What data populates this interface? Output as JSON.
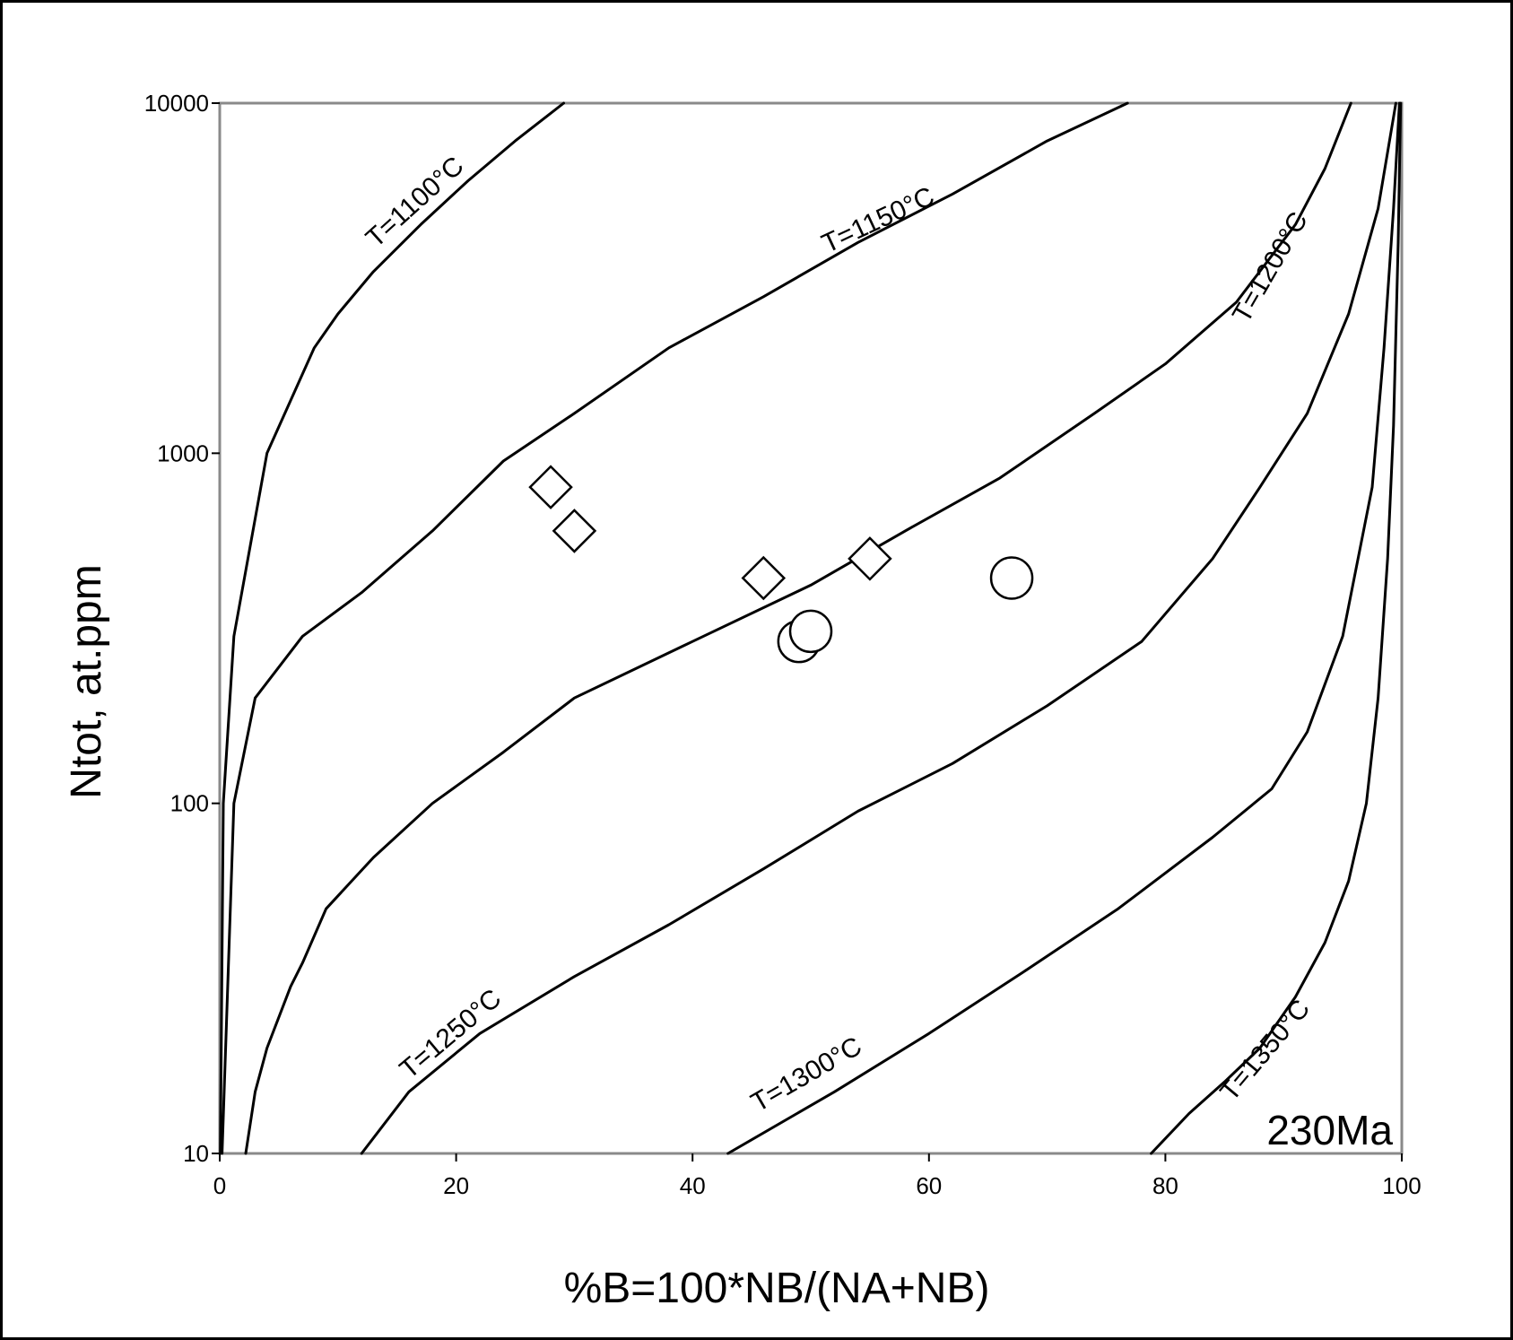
{
  "chart_data": {
    "type": "line",
    "xlabel": "%B=100*NB/(NA+NB)",
    "ylabel": "Ntot, at.ppm",
    "xlim": [
      0,
      100
    ],
    "ylim": [
      10,
      10000
    ],
    "yscale": "log",
    "x_ticks": [
      "0",
      "20",
      "40",
      "60",
      "80",
      "100"
    ],
    "y_ticks": [
      "10",
      "100",
      "1000",
      "10000"
    ],
    "grid": false,
    "annotation": "230Ma",
    "series": [
      {
        "name": "T=1100°C",
        "x": [
          0.05,
          0.3,
          1.2,
          4,
          8,
          10,
          13,
          17,
          21,
          25,
          29.1
        ],
        "y": [
          10,
          100,
          300,
          1000,
          2000,
          2500,
          3300,
          4500,
          6000,
          7800,
          10000
        ]
      },
      {
        "name": "T=1150°C",
        "x": [
          0.2,
          1.2,
          3,
          7,
          12,
          18,
          24,
          30,
          38,
          46,
          54,
          62,
          70,
          76.8
        ],
        "y": [
          10,
          100,
          200,
          300,
          400,
          600,
          950,
          1300,
          2000,
          2800,
          4000,
          5500,
          7800,
          10000
        ]
      },
      {
        "name": "T=1200°C",
        "x": [
          2.2,
          3,
          4,
          6,
          7,
          9,
          13,
          18,
          24,
          30,
          40,
          50,
          58,
          66,
          74,
          80,
          86,
          91,
          93.5,
          95.7
        ],
        "y": [
          10,
          15,
          20,
          30,
          35,
          50,
          70,
          100,
          140,
          200,
          290,
          420,
          600,
          850,
          1300,
          1800,
          2700,
          4500,
          6500,
          10000
        ]
      },
      {
        "name": "T=1250°C",
        "x": [
          12,
          16,
          22,
          30,
          38,
          46,
          54,
          62,
          70,
          78,
          84,
          88,
          92,
          95.5,
          98,
          99.5
        ],
        "y": [
          10,
          15,
          22,
          32,
          45,
          65,
          95,
          130,
          190,
          290,
          500,
          800,
          1300,
          2500,
          5000,
          10000
        ]
      },
      {
        "name": "T=1300°C",
        "x": [
          43,
          52,
          60,
          68,
          76,
          84,
          89,
          92,
          95,
          97.5,
          98.5,
          99.3,
          99.8
        ],
        "y": [
          10,
          15,
          22,
          33,
          50,
          80,
          110,
          160,
          300,
          800,
          2000,
          5000,
          10000
        ]
      },
      {
        "name": "T=1350°C",
        "x": [
          78.8,
          82,
          85,
          88,
          91,
          93.5,
          95.5,
          97,
          98,
          98.8,
          99.3,
          99.7,
          99.9
        ],
        "y": [
          10,
          13,
          16,
          20,
          28,
          40,
          60,
          100,
          200,
          500,
          1200,
          4000,
          10000
        ]
      },
      {
        "name": "",
        "marker": "diamond",
        "x": [
          28,
          30,
          46,
          55
        ],
        "y": [
          800,
          600,
          440,
          500
        ]
      },
      {
        "name": "",
        "marker": "circle",
        "x": [
          49,
          50,
          67
        ],
        "y": [
          290,
          310,
          440
        ]
      }
    ]
  }
}
